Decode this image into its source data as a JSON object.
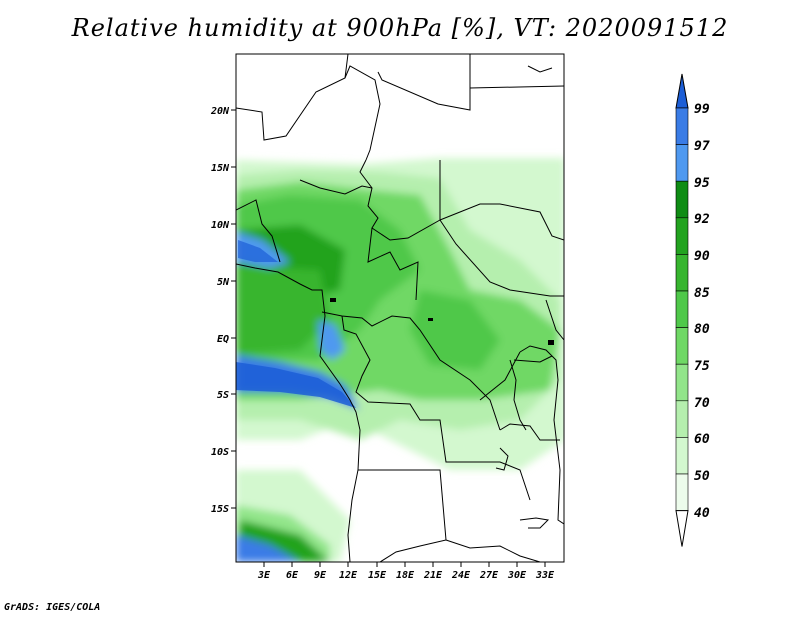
{
  "title": "Relative humidity at 900hPa [%], VT: 2020091512",
  "footer": "GrADS: IGES/COLA",
  "map": {
    "lon_range": [
      0,
      35
    ],
    "lat_range": [
      -19,
      24
    ],
    "lat_labels": [
      "20N",
      "15N",
      "10N",
      "5N",
      "EQ",
      "5S",
      "10S",
      "15S"
    ],
    "lon_labels": [
      "3E",
      "6E",
      "9E",
      "12E",
      "15E",
      "18E",
      "21E",
      "24E",
      "27E",
      "30E",
      "33E"
    ]
  },
  "colorbar": {
    "levels": [
      "99",
      "97",
      "95",
      "92",
      "90",
      "85",
      "80",
      "75",
      "70",
      "60",
      "50",
      "40"
    ],
    "colors": [
      "#1c5ed6",
      "#3a7ce6",
      "#4f99f0",
      "#0f8c14",
      "#22a31f",
      "#37b52f",
      "#4fc84a",
      "#6fd865",
      "#92e58a",
      "#b5efae",
      "#d3f8cf",
      "#edfcec",
      "#ffffff"
    ]
  }
}
